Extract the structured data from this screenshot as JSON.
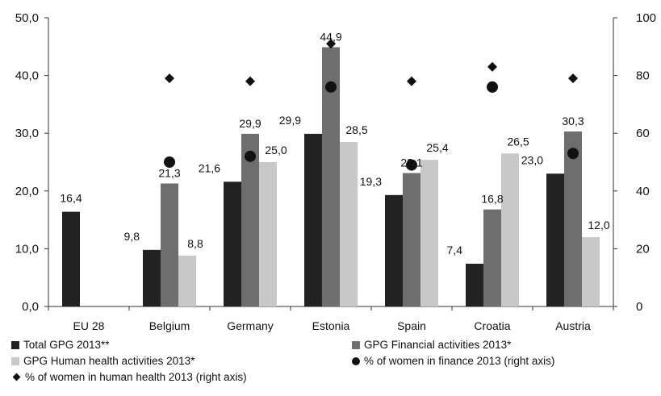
{
  "chart_data": {
    "type": "bar",
    "categories": [
      "EU 28",
      "Belgium",
      "Germany",
      "Estonia",
      "Spain",
      "Croatia",
      "Austria"
    ],
    "y_left": {
      "min": 0,
      "max": 50,
      "ticks": [
        "0,0",
        "10,0",
        "20,0",
        "30,0",
        "40,0",
        "50,0"
      ]
    },
    "y_right": {
      "min": 0,
      "max": 100,
      "ticks": [
        "0",
        "20",
        "40",
        "60",
        "80",
        "100"
      ]
    },
    "bar_series": [
      {
        "name": "Total GPG 2013**",
        "color": "#222222",
        "values": [
          16.4,
          9.8,
          21.6,
          29.9,
          19.3,
          7.4,
          23.0
        ],
        "labels": [
          "16,4",
          "9,8",
          "21,6",
          "29,9",
          "19,3",
          "7,4",
          "23,0"
        ]
      },
      {
        "name": "GPG Financial activities 2013*",
        "color": "#6e6e6e",
        "values": [
          null,
          21.3,
          29.9,
          44.9,
          23.1,
          16.8,
          30.3
        ],
        "labels": [
          "",
          "21,3",
          "29,9",
          "44,9",
          "23,1",
          "16,8",
          "30,3"
        ]
      },
      {
        "name": "GPG Human health activities 2013*",
        "color": "#c8c8c8",
        "values": [
          null,
          8.8,
          25.0,
          28.5,
          25.4,
          26.5,
          12.0
        ],
        "labels": [
          "",
          "8,8",
          "25,0",
          "28,5",
          "25,4",
          "26,5",
          "12,0"
        ]
      }
    ],
    "point_series": [
      {
        "name": "% of women in finance 2013 (right axis)",
        "marker": "circle",
        "color": "#111111",
        "values": [
          null,
          50,
          52,
          76,
          49,
          76,
          53
        ]
      },
      {
        "name": "% of women in human health 2013 (right axis)",
        "marker": "diamond",
        "color": "#111111",
        "values": [
          null,
          79,
          78,
          91,
          78,
          83,
          79
        ]
      }
    ],
    "legend_placement": "bottom",
    "grid": false
  }
}
